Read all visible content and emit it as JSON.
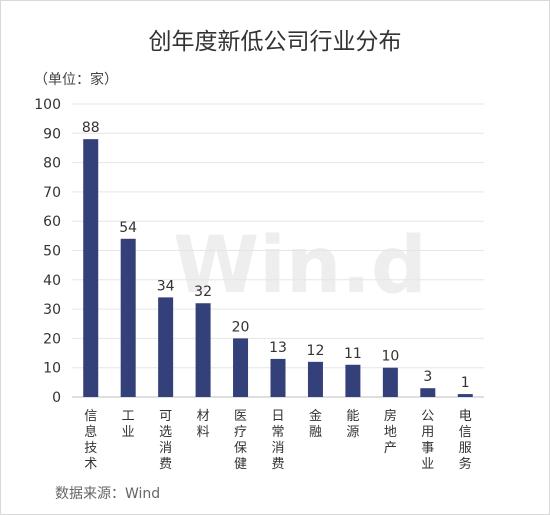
{
  "chart_data": {
    "type": "bar",
    "title": "创年度新低公司行业分布",
    "unit_label": "（单位：家）",
    "source": "数据来源：Wind",
    "watermark": "Win.d",
    "categories": [
      "信息技术",
      "工业",
      "可选消费",
      "材料",
      "医疗保健",
      "日常消费",
      "金融",
      "能源",
      "房地产",
      "公用事业",
      "电信服务"
    ],
    "values": [
      88,
      54,
      34,
      32,
      20,
      13,
      12,
      11,
      10,
      3,
      1
    ],
    "ylim": [
      0,
      100
    ],
    "yticks": [
      0,
      10,
      20,
      30,
      40,
      50,
      60,
      70,
      80,
      90,
      100
    ],
    "grid": true,
    "bar_color": "#34407a"
  }
}
